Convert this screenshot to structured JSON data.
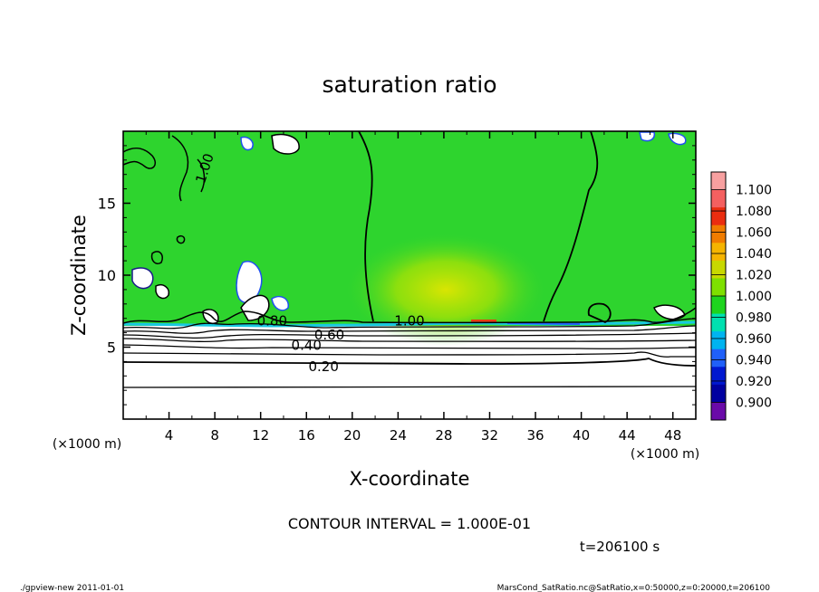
{
  "chart_data": {
    "type": "heatmap",
    "title": "saturation ratio",
    "xlabel": "X-coordinate",
    "ylabel": "Z-coordinate",
    "x_unit": "(×1000 m)",
    "z_unit": "(×1000 m)",
    "xlim": [
      0,
      50
    ],
    "ylim": [
      0,
      20
    ],
    "x_ticks": [
      4,
      8,
      12,
      16,
      20,
      24,
      28,
      32,
      36,
      40,
      44,
      48
    ],
    "y_ticks": [
      5,
      10,
      15
    ],
    "colorbar": {
      "levels": [
        "1.100",
        "1.080",
        "1.060",
        "1.040",
        "1.020",
        "1.000",
        "0.980",
        "0.960",
        "0.940",
        "0.920",
        "0.900"
      ],
      "colors": [
        "#f7a0a0",
        "#f46060",
        "#ea2d10",
        "#f07c00",
        "#f5b400",
        "#c8d800",
        "#7ee000",
        "#1ed41e",
        "#00e0b0",
        "#00b4f0",
        "#2060f8",
        "#0018d0",
        "#0000a0",
        "#6a0aa8"
      ]
    },
    "contour_labels": [
      {
        "text": "0.20",
        "x": 17.5,
        "z": 3.7
      },
      {
        "text": "0.40",
        "x": 16,
        "z": 5.2
      },
      {
        "text": "0.60",
        "x": 18,
        "z": 5.9
      },
      {
        "text": "0.80",
        "x": 13,
        "z": 6.9
      },
      {
        "text": "1.00",
        "x": 25,
        "z": 6.9
      },
      {
        "text": "1.00",
        "x": 7.5,
        "z": 17.7
      }
    ],
    "contour_interval_label": "CONTOUR INTERVAL = 1.000E-01",
    "time_label": "t=206100 s"
  },
  "footer": {
    "left": "./gpview-new  2011-01-01",
    "right": "MarsCond_SatRatio.nc@SatRatio,x=0:50000,z=0:20000,t=206100"
  }
}
